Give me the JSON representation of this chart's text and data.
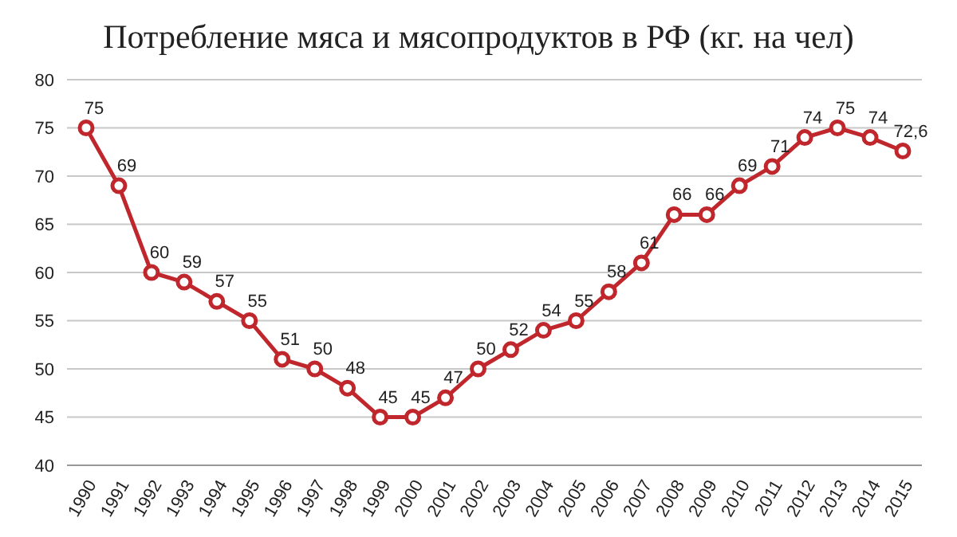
{
  "chart_data": {
    "type": "line",
    "title": "Потребление мяса и мясопродуктов в РФ (кг. на чел)",
    "categories": [
      "1990",
      "1991",
      "1992",
      "1993",
      "1994",
      "1995",
      "1996",
      "1997",
      "1998",
      "1999",
      "2000",
      "2001",
      "2002",
      "2003",
      "2004",
      "2005",
      "2006",
      "2007",
      "2008",
      "2009",
      "2010",
      "2011",
      "2012",
      "2013",
      "2014",
      "2015"
    ],
    "series": [
      {
        "color": "#c0272d",
        "values": [
          75,
          69,
          60,
          59,
          57,
          55,
          51,
          50,
          48,
          45,
          45,
          47,
          50,
          52,
          54,
          55,
          58,
          61,
          66,
          66,
          69,
          71,
          74,
          75,
          74,
          72.6
        ],
        "value_labels": [
          "75",
          "69",
          "60",
          "59",
          "57",
          "55",
          "51",
          "50",
          "48",
          "45",
          "45",
          "47",
          "50",
          "52",
          "54",
          "55",
          "58",
          "61",
          "66",
          "66",
          "69",
          "71",
          "74",
          "75",
          "74",
          "72,6"
        ]
      }
    ],
    "ylim": [
      40,
      80
    ],
    "yticks": [
      40,
      45,
      50,
      55,
      60,
      65,
      70,
      75,
      80
    ],
    "grid": "y",
    "marker": "circle",
    "line_style": "solid"
  }
}
